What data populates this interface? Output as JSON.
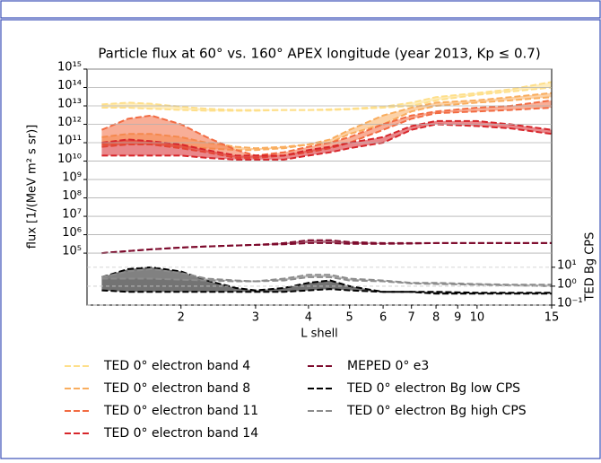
{
  "chart_data": {
    "type": "line",
    "title": "Particle flux at 60° vs. 160° APEX longitude (year 2013, Kp ≤ 0.7)",
    "x_label": "L shell",
    "y_label": "flux [1/(MeV m² s sr)]",
    "y2_label": "TED Bg CPS",
    "x_scale": "log",
    "y_scale": "log",
    "y2_scale": "log",
    "grid": true,
    "y2_grid": true,
    "xlim": [
      1.2,
      15
    ],
    "ylim": [
      150,
      1000000000000000.0
    ],
    "y2lim": [
      0.1,
      300000000000.0
    ],
    "xticks": [
      2,
      3,
      4,
      5,
      6,
      7,
      8,
      9,
      10,
      15
    ],
    "yticks": [
      {
        "value": 100000.0,
        "label": "10⁵"
      },
      {
        "value": 1000000.0,
        "label": "10⁶"
      },
      {
        "value": 10000000.0,
        "label": "10⁷"
      },
      {
        "value": 100000000.0,
        "label": "10⁸"
      },
      {
        "value": 1000000000.0,
        "label": "10⁹"
      },
      {
        "value": 10000000000.0,
        "label": "10¹⁰"
      },
      {
        "value": 100000000000.0,
        "label": "10¹¹"
      },
      {
        "value": 1000000000000.0,
        "label": "10¹²"
      },
      {
        "value": 10000000000000.0,
        "label": "10¹³"
      },
      {
        "value": 100000000000000.0,
        "label": "10¹⁴"
      },
      {
        "value": 1000000000000000.0,
        "label": "10¹⁵"
      }
    ],
    "y2ticks": [
      {
        "value": 0.1,
        "label": "10⁻¹"
      },
      {
        "value": 1,
        "label": "10⁰"
      },
      {
        "value": 10,
        "label": "10¹"
      }
    ],
    "x": [
      1.3,
      1.5,
      1.7,
      2,
      2.3,
      2.7,
      3,
      3.5,
      4,
      4.5,
      5,
      6,
      7,
      8,
      10,
      12,
      15
    ],
    "series": [
      {
        "name": "TED 0° electron band 4",
        "color": "#fedf8a",
        "values": [
          12000000000000.0,
          15000000000000.0,
          13000000000000.0,
          9000000000000.0,
          7000000000000.0,
          6000000000000.0,
          6000000000000.0,
          6000000000000.0,
          6000000000000.0,
          6500000000000.0,
          7000000000000.0,
          9000000000000.0,
          15000000000000.0,
          30000000000000.0,
          50000000000000.0,
          80000000000000.0,
          200000000000000.0
        ],
        "values2": [
          8000000000000.0,
          8000000000000.0,
          7000000000000.0,
          6000000000000.0,
          5500000000000.0,
          5500000000000.0,
          5500000000000.0,
          6000000000000.0,
          6000000000000.0,
          6000000000000.0,
          6500000000000.0,
          8000000000000.0,
          10000000000000.0,
          20000000000000.0,
          40000000000000.0,
          60000000000000.0,
          100000000000000.0
        ]
      },
      {
        "name": "TED 0° electron band 8",
        "color": "#f9ad5e",
        "values": [
          200000000000.0,
          300000000000.0,
          300000000000.0,
          200000000000.0,
          100000000000.0,
          60000000000.0,
          50000000000.0,
          60000000000.0,
          80000000000.0,
          150000000000.0,
          500000000000.0,
          3000000000000.0,
          8000000000000.0,
          15000000000000.0,
          20000000000000.0,
          30000000000000.0,
          50000000000000.0
        ],
        "values2": [
          80000000000.0,
          80000000000.0,
          80000000000.0,
          60000000000.0,
          50000000000.0,
          40000000000.0,
          40000000000.0,
          50000000000.0,
          80000000000.0,
          100000000000.0,
          300000000000.0,
          1000000000000.0,
          5000000000000.0,
          10000000000000.0,
          15000000000000.0,
          20000000000000.0,
          30000000000000.0
        ]
      },
      {
        "name": "TED 0° electron band 11",
        "color": "#f26b42",
        "values": [
          500000000000.0,
          2000000000000.0,
          3000000000000.0,
          1000000000000.0,
          200000000000.0,
          40000000000.0,
          20000000000.0,
          30000000000.0,
          60000000000.0,
          100000000000.0,
          200000000000.0,
          1000000000000.0,
          3000000000000.0,
          5000000000000.0,
          8000000000000.0,
          10000000000000.0,
          20000000000000.0
        ],
        "values2": [
          60000000000.0,
          80000000000.0,
          80000000000.0,
          50000000000.0,
          30000000000.0,
          15000000000.0,
          15000000000.0,
          20000000000.0,
          30000000000.0,
          50000000000.0,
          100000000000.0,
          500000000000.0,
          2000000000000.0,
          4000000000000.0,
          5000000000000.0,
          6000000000000.0,
          8000000000000.0
        ]
      },
      {
        "name": "TED 0° electron band 14",
        "color": "#d7262b",
        "values": [
          100000000000.0,
          150000000000.0,
          120000000000.0,
          80000000000.0,
          40000000000.0,
          20000000000.0,
          20000000000.0,
          20000000000.0,
          40000000000.0,
          60000000000.0,
          100000000000.0,
          200000000000.0,
          800000000000.0,
          1500000000000.0,
          1500000000000.0,
          1000000000000.0,
          500000000000.0
        ],
        "values2": [
          20000000000.0,
          20000000000.0,
          20000000000.0,
          20000000000.0,
          15000000000.0,
          12000000000.0,
          12000000000.0,
          12000000000.0,
          20000000000.0,
          30000000000.0,
          50000000000.0,
          100000000000.0,
          500000000000.0,
          1000000000000.0,
          800000000000.0,
          600000000000.0,
          300000000000.0
        ]
      },
      {
        "name": "MEPED 0° e3",
        "color": "#7d0a2c",
        "values": [
          100000.0,
          130000.0,
          160000.0,
          200000.0,
          230000.0,
          260000.0,
          280000.0,
          300000.0,
          350000.0,
          350000.0,
          320000.0,
          320000.0,
          330000.0,
          350000.0,
          350000.0,
          350000.0,
          350000.0
        ],
        "values2": [
          100000.0,
          130000.0,
          160000.0,
          200000.0,
          230000.0,
          260000.0,
          280000.0,
          350000.0,
          500000.0,
          500000.0,
          400000.0,
          350000.0,
          350000.0,
          350000.0,
          350000.0,
          350000.0,
          350000.0
        ]
      },
      {
        "name": "TED 0° electron Bg low CPS",
        "color": "#000000",
        "axis": "y2",
        "values": [
          3,
          8,
          10,
          6,
          2,
          0.8,
          0.6,
          0.8,
          1.5,
          2,
          1,
          0.5,
          0.5,
          0.5,
          0.45,
          0.45,
          0.45
        ],
        "values2": [
          0.6,
          0.5,
          0.5,
          0.5,
          0.5,
          0.5,
          0.5,
          0.5,
          0.6,
          0.7,
          0.6,
          0.5,
          0.5,
          0.4,
          0.4,
          0.4,
          0.4
        ]
      },
      {
        "name": "TED 0° electron Bg high CPS",
        "color": "#8c8c8c",
        "axis": "y2",
        "values": [
          3,
          6,
          8,
          5,
          2.5,
          2,
          1.8,
          2.5,
          4,
          4,
          2.5,
          2,
          1.5,
          1.5,
          1.3,
          1.2,
          1.2
        ],
        "values2": [
          2.5,
          2.5,
          2.5,
          2.2,
          2,
          1.8,
          1.8,
          2,
          3,
          3,
          2,
          1.8,
          1.4,
          1.3,
          1.2,
          1.1,
          1.0
        ]
      }
    ]
  }
}
